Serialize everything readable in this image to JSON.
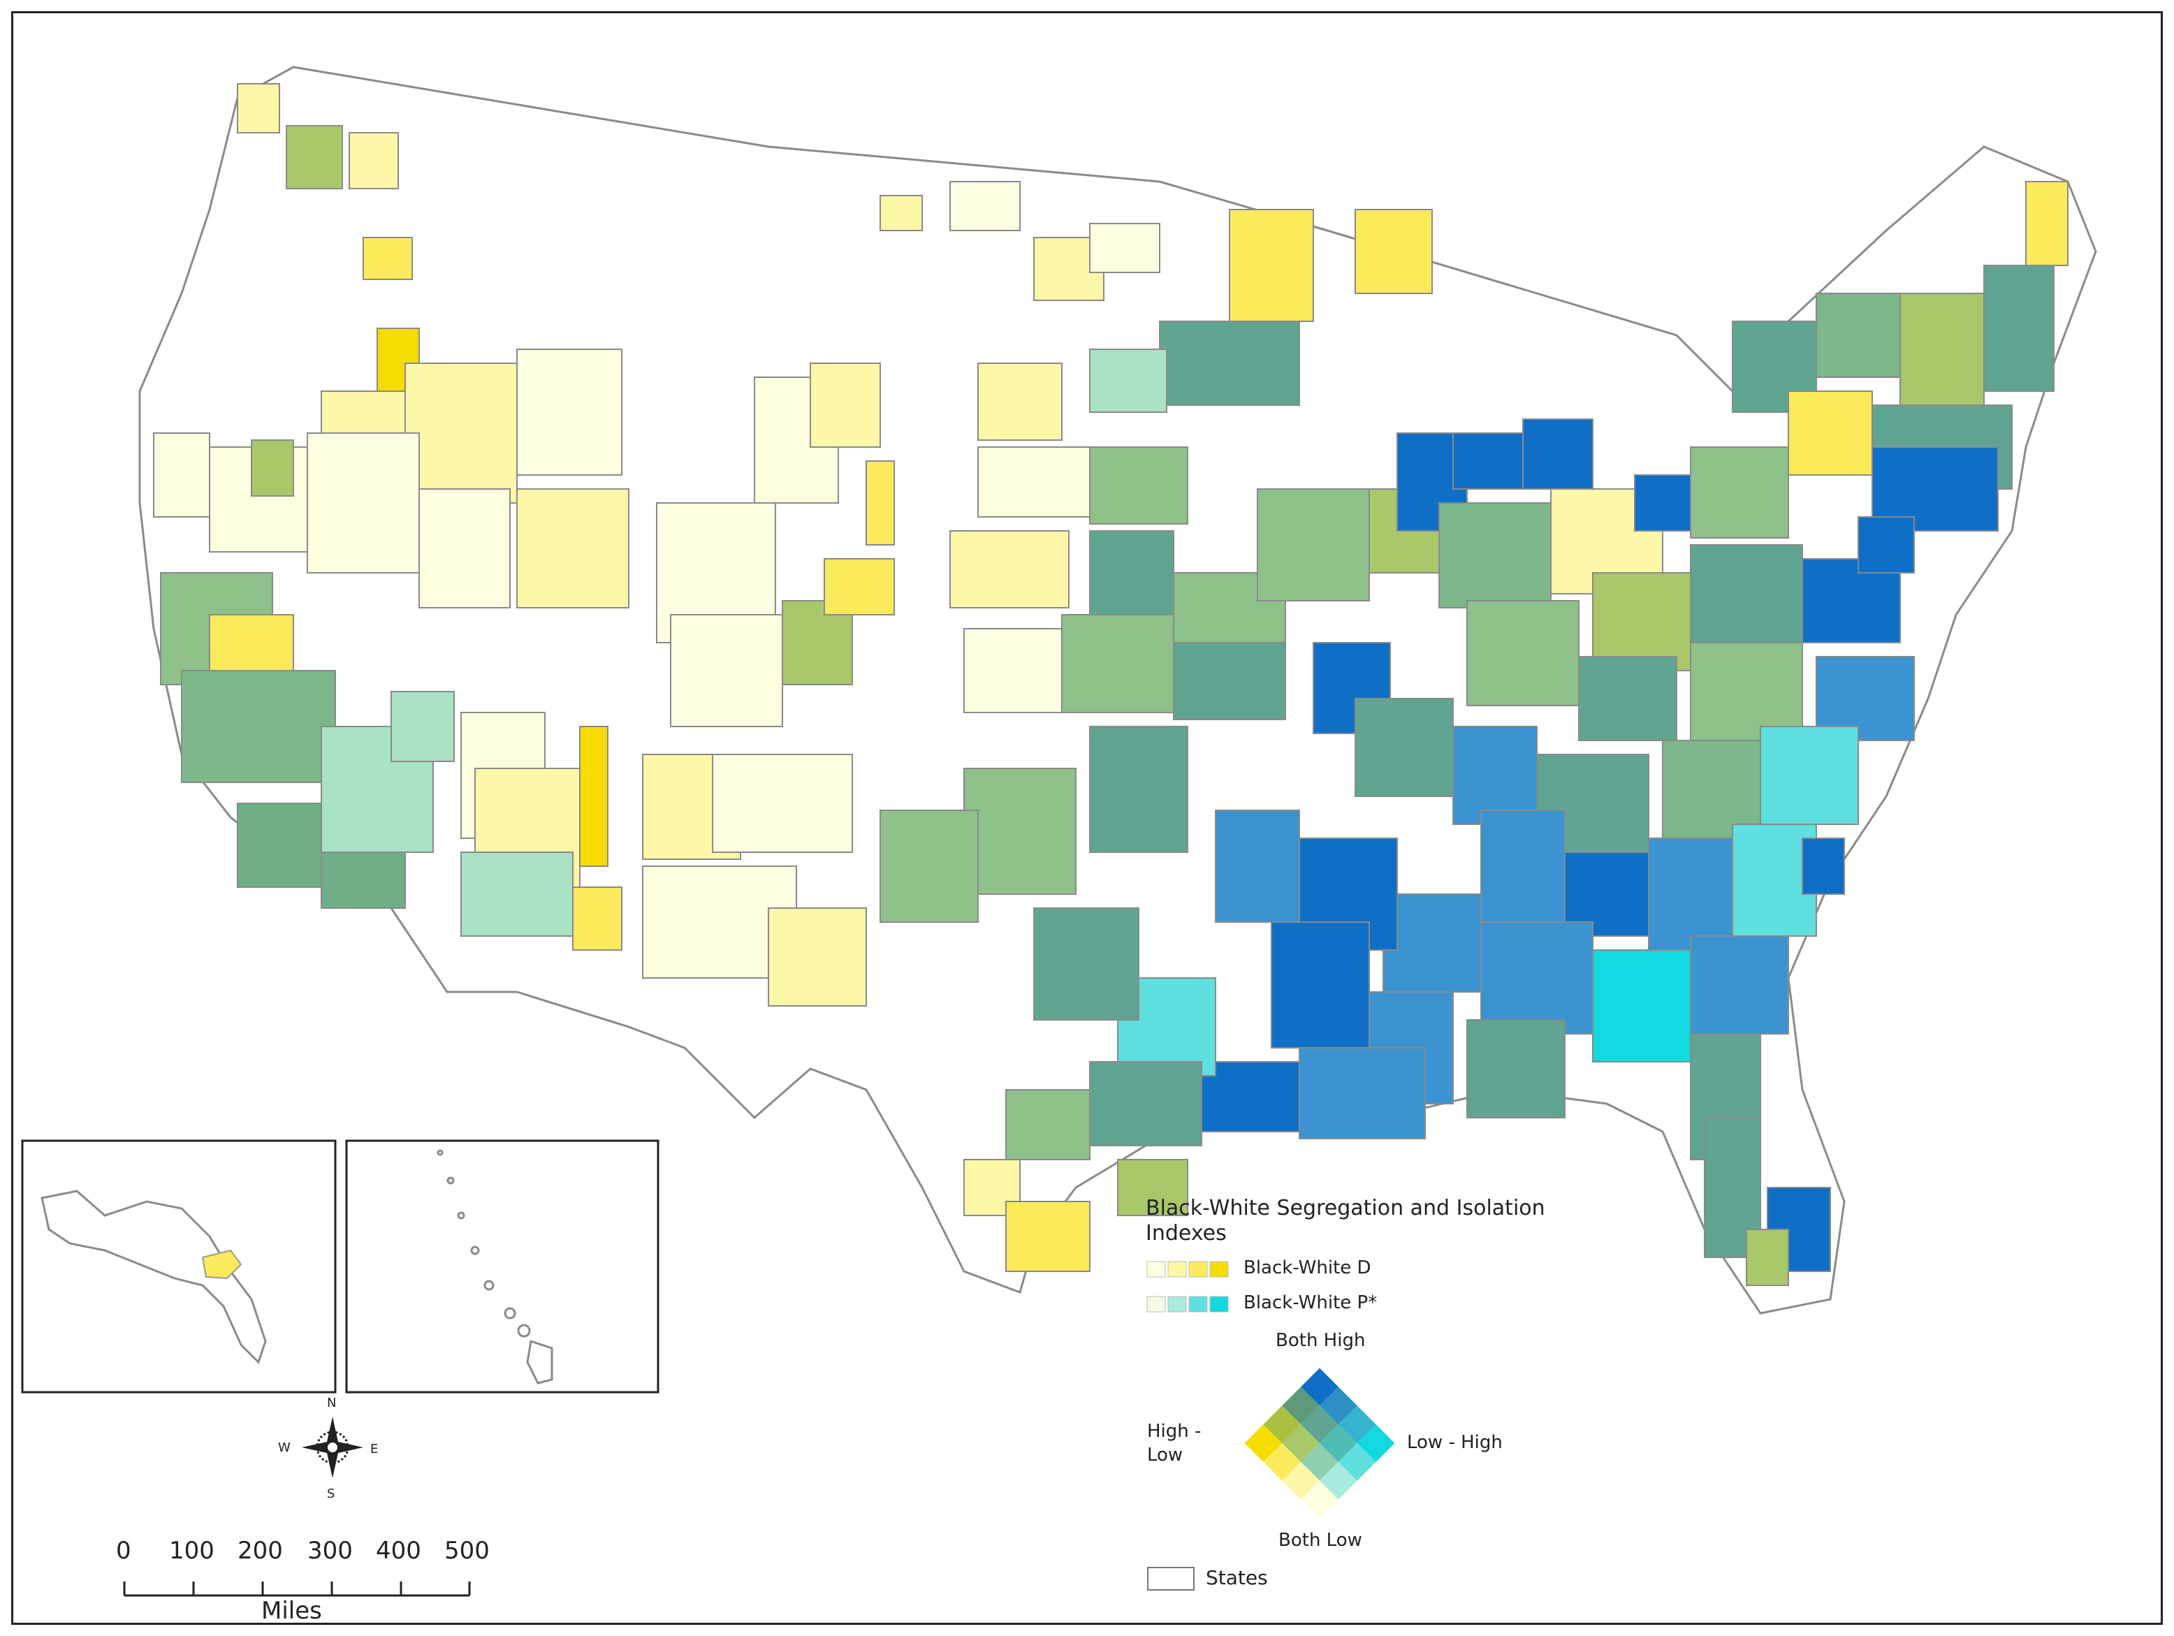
{
  "legend": {
    "title": "Black-White Segregation and  Isolation Indexes",
    "series_d_label": "Black-White D",
    "series_p_label": "Black-White P*",
    "diamond": {
      "top": "Both High",
      "bottom": "Both Low",
      "left": "High -\nLow",
      "right": "Low - High"
    },
    "states_label": "States"
  },
  "north_arrow": {
    "n": "N",
    "s": "S",
    "e": "E",
    "w": "W"
  },
  "scale_bar": {
    "ticks": [
      "0",
      "100",
      "200",
      "300",
      "400",
      "500"
    ],
    "unit": "Miles"
  },
  "colors": {
    "d_ramp": [
      "#fefee0",
      "#fdf7a8",
      "#fbeb5c",
      "#f7dc00"
    ],
    "p_ramp": [
      "#f3fbe6",
      "#a9ecdf",
      "#5fdfe0",
      "#11d9df"
    ],
    "both_high": "#0f6fc6",
    "state_border": "#8a8a8a",
    "frame": "#222222"
  }
}
